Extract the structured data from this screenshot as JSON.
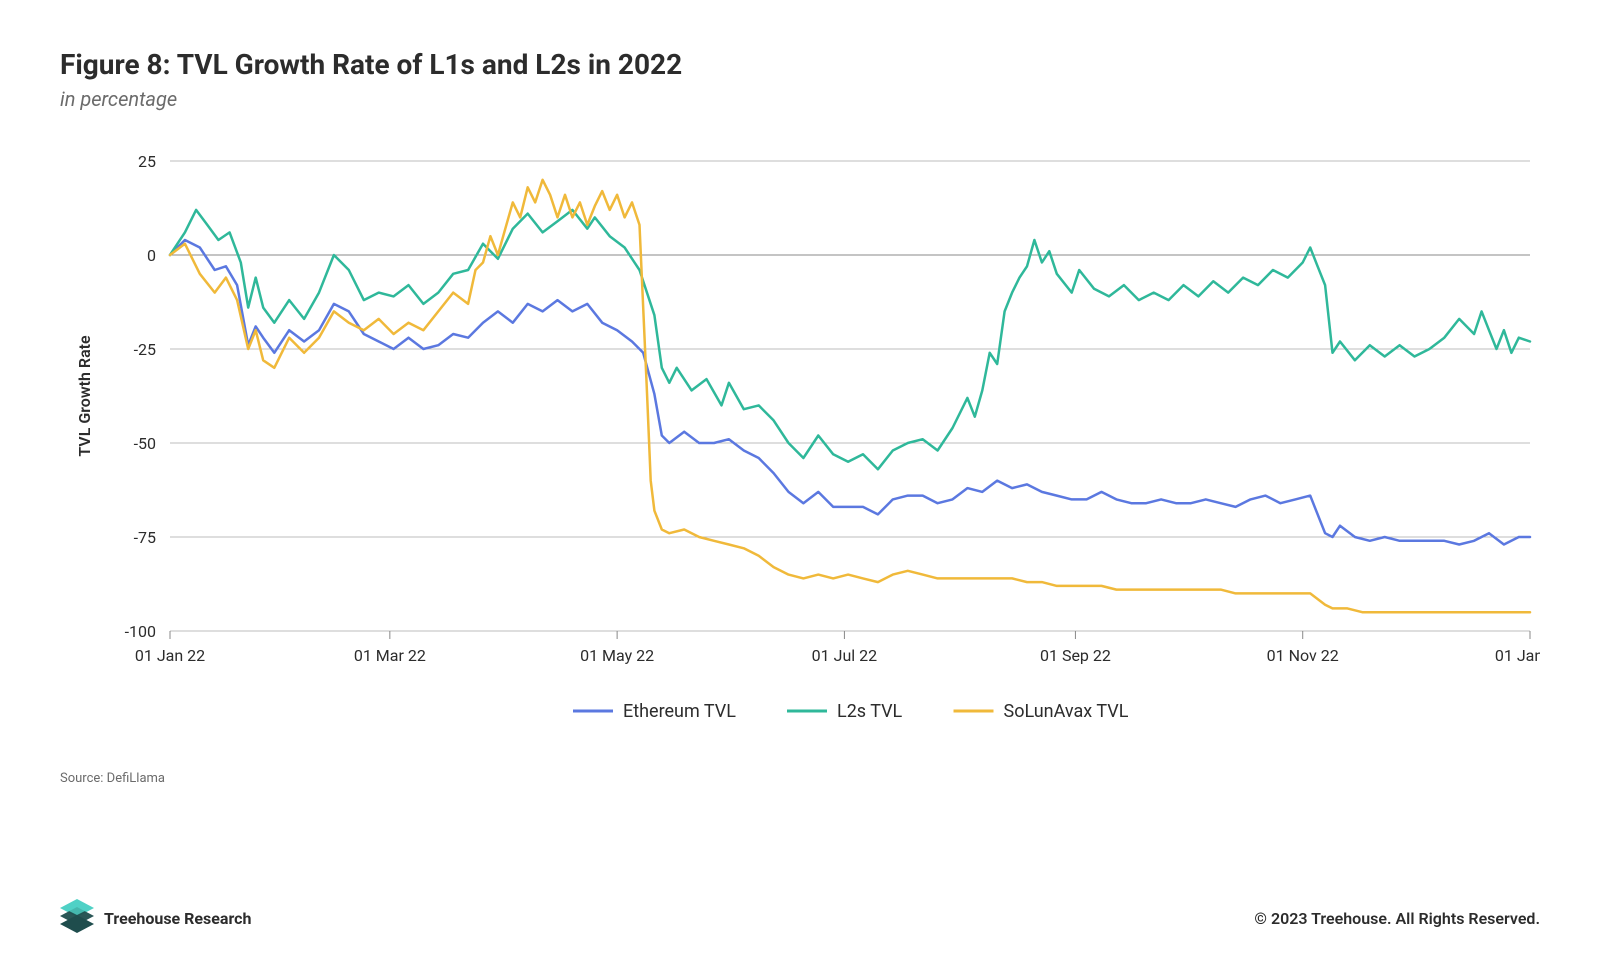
{
  "header": {
    "title": "Figure 8: TVL Growth Rate of L1s and L2s in 2022",
    "subtitle": "in percentage"
  },
  "chart": {
    "type": "line",
    "background_color": "#ffffff",
    "plot_background": "#ffffff",
    "y_axis": {
      "label": "TVL Growth Rate",
      "label_fontsize": 16,
      "min": -100,
      "max": 25,
      "tick_step": 25,
      "ticks": [
        -100,
        -75,
        -50,
        -25,
        0,
        25
      ],
      "grid_color": "#bdbdbd",
      "grid_width": 1,
      "zero_line_color": "#888888",
      "tick_fontsize": 16
    },
    "x_axis": {
      "min": 0,
      "max": 365,
      "ticks": [
        0,
        59,
        120,
        181,
        243,
        304,
        365
      ],
      "tick_labels": [
        "01 Jan 22",
        "01 Mar 22",
        "01 May 22",
        "01 Jul 22",
        "01 Sep 22",
        "01 Nov 22",
        "01 Jan 23"
      ],
      "tick_color": "#888888",
      "tick_fontsize": 16
    },
    "line_width": 2.5,
    "series": [
      {
        "name": "Ethereum TVL",
        "color": "#5b78e0",
        "data": [
          [
            0,
            0
          ],
          [
            4,
            4
          ],
          [
            8,
            2
          ],
          [
            12,
            -4
          ],
          [
            15,
            -3
          ],
          [
            18,
            -8
          ],
          [
            21,
            -24
          ],
          [
            23,
            -19
          ],
          [
            25,
            -22
          ],
          [
            28,
            -26
          ],
          [
            32,
            -20
          ],
          [
            36,
            -23
          ],
          [
            40,
            -20
          ],
          [
            44,
            -13
          ],
          [
            48,
            -15
          ],
          [
            52,
            -21
          ],
          [
            56,
            -23
          ],
          [
            60,
            -25
          ],
          [
            64,
            -22
          ],
          [
            68,
            -25
          ],
          [
            72,
            -24
          ],
          [
            76,
            -21
          ],
          [
            80,
            -22
          ],
          [
            84,
            -18
          ],
          [
            88,
            -15
          ],
          [
            92,
            -18
          ],
          [
            96,
            -13
          ],
          [
            100,
            -15
          ],
          [
            104,
            -12
          ],
          [
            108,
            -15
          ],
          [
            112,
            -13
          ],
          [
            116,
            -18
          ],
          [
            120,
            -20
          ],
          [
            124,
            -23
          ],
          [
            127,
            -26
          ],
          [
            130,
            -37
          ],
          [
            132,
            -48
          ],
          [
            134,
            -50
          ],
          [
            138,
            -47
          ],
          [
            142,
            -50
          ],
          [
            146,
            -50
          ],
          [
            150,
            -49
          ],
          [
            154,
            -52
          ],
          [
            158,
            -54
          ],
          [
            162,
            -58
          ],
          [
            166,
            -63
          ],
          [
            170,
            -66
          ],
          [
            174,
            -63
          ],
          [
            178,
            -67
          ],
          [
            182,
            -67
          ],
          [
            186,
            -67
          ],
          [
            190,
            -69
          ],
          [
            194,
            -65
          ],
          [
            198,
            -64
          ],
          [
            202,
            -64
          ],
          [
            206,
            -66
          ],
          [
            210,
            -65
          ],
          [
            214,
            -62
          ],
          [
            218,
            -63
          ],
          [
            222,
            -60
          ],
          [
            226,
            -62
          ],
          [
            230,
            -61
          ],
          [
            234,
            -63
          ],
          [
            238,
            -64
          ],
          [
            242,
            -65
          ],
          [
            246,
            -65
          ],
          [
            250,
            -63
          ],
          [
            254,
            -65
          ],
          [
            258,
            -66
          ],
          [
            262,
            -66
          ],
          [
            266,
            -65
          ],
          [
            270,
            -66
          ],
          [
            274,
            -66
          ],
          [
            278,
            -65
          ],
          [
            282,
            -66
          ],
          [
            286,
            -67
          ],
          [
            290,
            -65
          ],
          [
            294,
            -64
          ],
          [
            298,
            -66
          ],
          [
            302,
            -65
          ],
          [
            306,
            -64
          ],
          [
            310,
            -74
          ],
          [
            312,
            -75
          ],
          [
            314,
            -72
          ],
          [
            318,
            -75
          ],
          [
            322,
            -76
          ],
          [
            326,
            -75
          ],
          [
            330,
            -76
          ],
          [
            334,
            -76
          ],
          [
            338,
            -76
          ],
          [
            342,
            -76
          ],
          [
            346,
            -77
          ],
          [
            350,
            -76
          ],
          [
            354,
            -74
          ],
          [
            358,
            -77
          ],
          [
            362,
            -75
          ],
          [
            365,
            -75
          ]
        ]
      },
      {
        "name": "L2s TVL",
        "color": "#2fb89a",
        "data": [
          [
            0,
            0
          ],
          [
            4,
            6
          ],
          [
            7,
            12
          ],
          [
            10,
            8
          ],
          [
            13,
            4
          ],
          [
            16,
            6
          ],
          [
            19,
            -2
          ],
          [
            21,
            -14
          ],
          [
            23,
            -6
          ],
          [
            25,
            -14
          ],
          [
            28,
            -18
          ],
          [
            32,
            -12
          ],
          [
            36,
            -17
          ],
          [
            40,
            -10
          ],
          [
            44,
            0
          ],
          [
            48,
            -4
          ],
          [
            52,
            -12
          ],
          [
            56,
            -10
          ],
          [
            60,
            -11
          ],
          [
            64,
            -8
          ],
          [
            68,
            -13
          ],
          [
            72,
            -10
          ],
          [
            76,
            -5
          ],
          [
            80,
            -4
          ],
          [
            84,
            3
          ],
          [
            88,
            -1
          ],
          [
            92,
            7
          ],
          [
            96,
            11
          ],
          [
            100,
            6
          ],
          [
            104,
            9
          ],
          [
            108,
            12
          ],
          [
            112,
            7
          ],
          [
            114,
            10
          ],
          [
            118,
            5
          ],
          [
            122,
            2
          ],
          [
            126,
            -4
          ],
          [
            130,
            -16
          ],
          [
            132,
            -30
          ],
          [
            134,
            -34
          ],
          [
            136,
            -30
          ],
          [
            140,
            -36
          ],
          [
            144,
            -33
          ],
          [
            148,
            -40
          ],
          [
            150,
            -34
          ],
          [
            154,
            -41
          ],
          [
            158,
            -40
          ],
          [
            162,
            -44
          ],
          [
            166,
            -50
          ],
          [
            170,
            -54
          ],
          [
            174,
            -48
          ],
          [
            178,
            -53
          ],
          [
            182,
            -55
          ],
          [
            186,
            -53
          ],
          [
            190,
            -57
          ],
          [
            194,
            -52
          ],
          [
            198,
            -50
          ],
          [
            202,
            -49
          ],
          [
            206,
            -52
          ],
          [
            210,
            -46
          ],
          [
            214,
            -38
          ],
          [
            216,
            -43
          ],
          [
            218,
            -36
          ],
          [
            220,
            -26
          ],
          [
            222,
            -29
          ],
          [
            224,
            -15
          ],
          [
            226,
            -10
          ],
          [
            228,
            -6
          ],
          [
            230,
            -3
          ],
          [
            232,
            4
          ],
          [
            234,
            -2
          ],
          [
            236,
            1
          ],
          [
            238,
            -5
          ],
          [
            242,
            -10
          ],
          [
            244,
            -4
          ],
          [
            248,
            -9
          ],
          [
            252,
            -11
          ],
          [
            256,
            -8
          ],
          [
            260,
            -12
          ],
          [
            264,
            -10
          ],
          [
            268,
            -12
          ],
          [
            272,
            -8
          ],
          [
            276,
            -11
          ],
          [
            280,
            -7
          ],
          [
            284,
            -10
          ],
          [
            288,
            -6
          ],
          [
            292,
            -8
          ],
          [
            296,
            -4
          ],
          [
            300,
            -6
          ],
          [
            304,
            -2
          ],
          [
            306,
            2
          ],
          [
            308,
            -3
          ],
          [
            310,
            -8
          ],
          [
            312,
            -26
          ],
          [
            314,
            -23
          ],
          [
            318,
            -28
          ],
          [
            322,
            -24
          ],
          [
            326,
            -27
          ],
          [
            330,
            -24
          ],
          [
            334,
            -27
          ],
          [
            338,
            -25
          ],
          [
            342,
            -22
          ],
          [
            346,
            -17
          ],
          [
            350,
            -21
          ],
          [
            352,
            -15
          ],
          [
            354,
            -20
          ],
          [
            356,
            -25
          ],
          [
            358,
            -20
          ],
          [
            360,
            -26
          ],
          [
            362,
            -22
          ],
          [
            365,
            -23
          ]
        ]
      },
      {
        "name": "SoLunAvax TVL",
        "color": "#f0b93a",
        "data": [
          [
            0,
            0
          ],
          [
            4,
            3
          ],
          [
            8,
            -5
          ],
          [
            12,
            -10
          ],
          [
            15,
            -6
          ],
          [
            18,
            -12
          ],
          [
            21,
            -25
          ],
          [
            23,
            -20
          ],
          [
            25,
            -28
          ],
          [
            28,
            -30
          ],
          [
            32,
            -22
          ],
          [
            36,
            -26
          ],
          [
            40,
            -22
          ],
          [
            44,
            -15
          ],
          [
            48,
            -18
          ],
          [
            52,
            -20
          ],
          [
            56,
            -17
          ],
          [
            60,
            -21
          ],
          [
            64,
            -18
          ],
          [
            68,
            -20
          ],
          [
            72,
            -15
          ],
          [
            76,
            -10
          ],
          [
            80,
            -13
          ],
          [
            82,
            -4
          ],
          [
            84,
            -2
          ],
          [
            86,
            5
          ],
          [
            88,
            0
          ],
          [
            90,
            7
          ],
          [
            92,
            14
          ],
          [
            94,
            10
          ],
          [
            96,
            18
          ],
          [
            98,
            14
          ],
          [
            100,
            20
          ],
          [
            102,
            16
          ],
          [
            104,
            10
          ],
          [
            106,
            16
          ],
          [
            108,
            10
          ],
          [
            110,
            14
          ],
          [
            112,
            8
          ],
          [
            114,
            13
          ],
          [
            116,
            17
          ],
          [
            118,
            12
          ],
          [
            120,
            16
          ],
          [
            122,
            10
          ],
          [
            124,
            14
          ],
          [
            126,
            8
          ],
          [
            128,
            -36
          ],
          [
            129,
            -60
          ],
          [
            130,
            -68
          ],
          [
            132,
            -73
          ],
          [
            134,
            -74
          ],
          [
            138,
            -73
          ],
          [
            142,
            -75
          ],
          [
            146,
            -76
          ],
          [
            150,
            -77
          ],
          [
            154,
            -78
          ],
          [
            158,
            -80
          ],
          [
            162,
            -83
          ],
          [
            166,
            -85
          ],
          [
            170,
            -86
          ],
          [
            174,
            -85
          ],
          [
            178,
            -86
          ],
          [
            182,
            -85
          ],
          [
            186,
            -86
          ],
          [
            190,
            -87
          ],
          [
            194,
            -85
          ],
          [
            198,
            -84
          ],
          [
            202,
            -85
          ],
          [
            206,
            -86
          ],
          [
            210,
            -86
          ],
          [
            214,
            -86
          ],
          [
            218,
            -86
          ],
          [
            222,
            -86
          ],
          [
            226,
            -86
          ],
          [
            230,
            -87
          ],
          [
            234,
            -87
          ],
          [
            238,
            -88
          ],
          [
            242,
            -88
          ],
          [
            246,
            -88
          ],
          [
            250,
            -88
          ],
          [
            254,
            -89
          ],
          [
            258,
            -89
          ],
          [
            262,
            -89
          ],
          [
            266,
            -89
          ],
          [
            270,
            -89
          ],
          [
            274,
            -89
          ],
          [
            278,
            -89
          ],
          [
            282,
            -89
          ],
          [
            286,
            -90
          ],
          [
            290,
            -90
          ],
          [
            294,
            -90
          ],
          [
            298,
            -90
          ],
          [
            302,
            -90
          ],
          [
            306,
            -90
          ],
          [
            310,
            -93
          ],
          [
            312,
            -94
          ],
          [
            316,
            -94
          ],
          [
            320,
            -95
          ],
          [
            324,
            -95
          ],
          [
            328,
            -95
          ],
          [
            332,
            -95
          ],
          [
            336,
            -95
          ],
          [
            340,
            -95
          ],
          [
            344,
            -95
          ],
          [
            348,
            -95
          ],
          [
            352,
            -95
          ],
          [
            356,
            -95
          ],
          [
            360,
            -95
          ],
          [
            365,
            -95
          ]
        ]
      }
    ],
    "legend": {
      "position": "bottom",
      "fontsize": 18,
      "line_length": 40,
      "gap": 50
    }
  },
  "source_label_prefix": "Source: ",
  "source_name": "DefiLlama",
  "footer": {
    "brand_name": "Treehouse Research",
    "logo_colors": {
      "primary": "#1f4d4d",
      "accent": "#4fd1c5"
    },
    "copyright": "© 2023 Treehouse. All Rights Reserved."
  }
}
